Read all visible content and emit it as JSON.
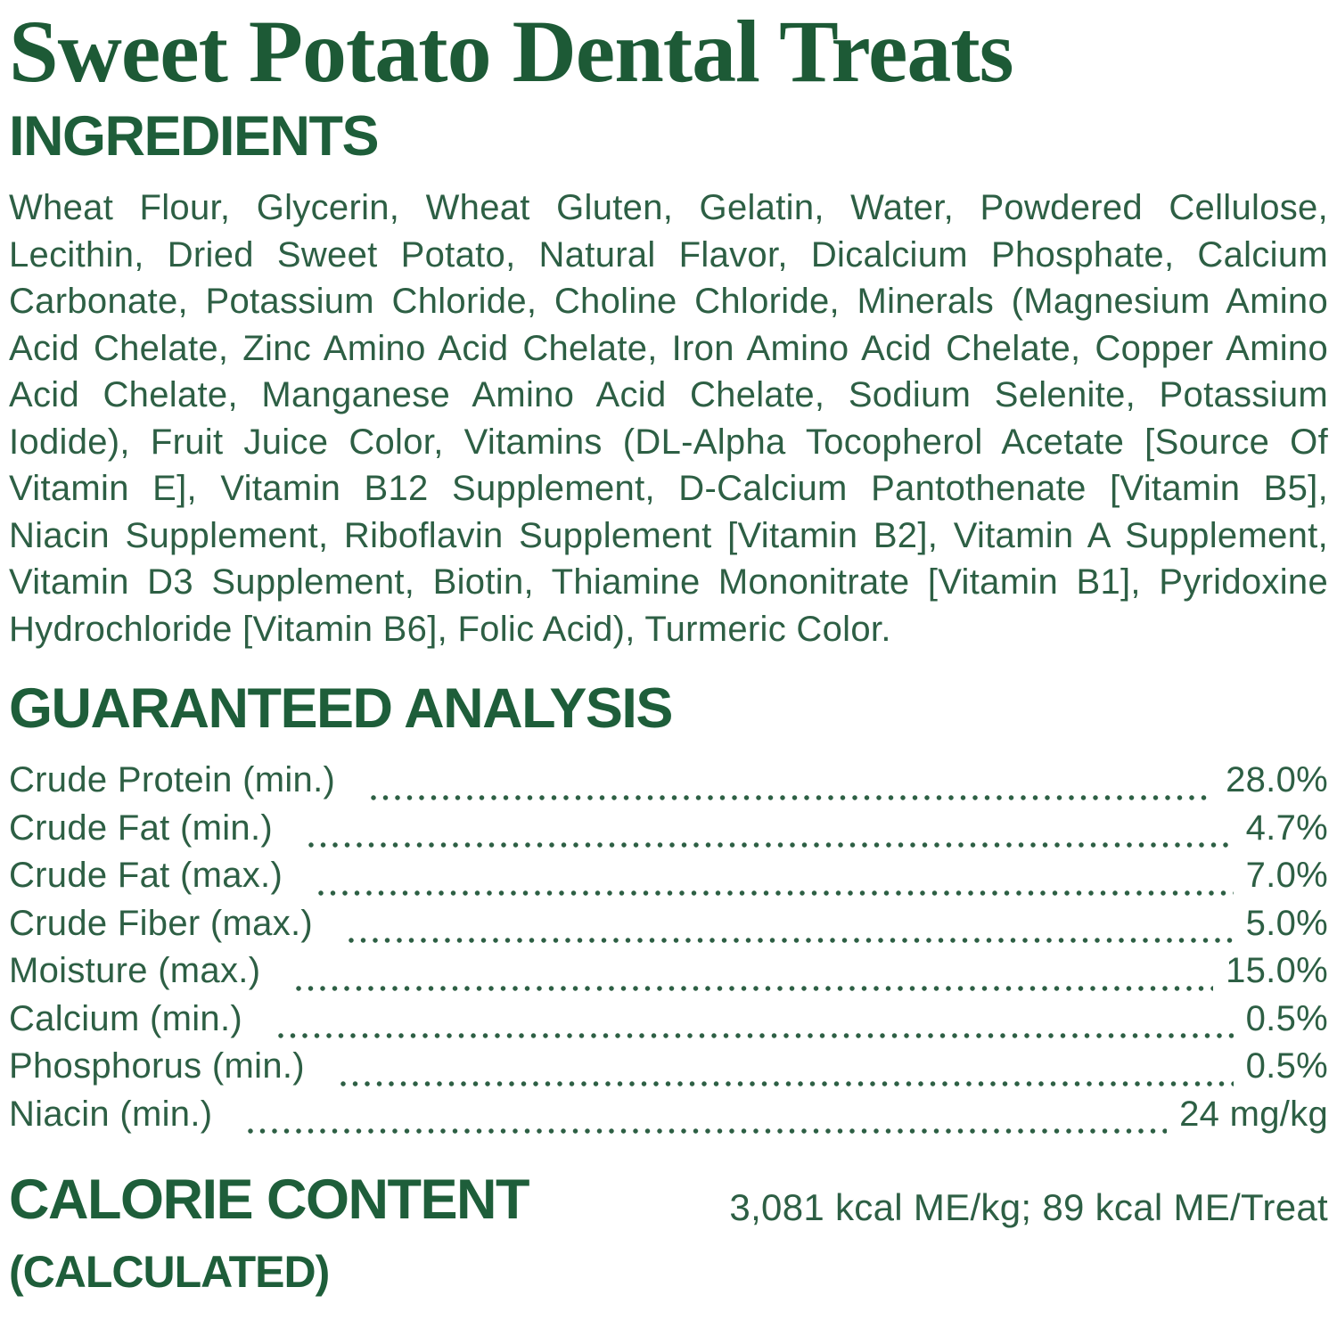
{
  "title": "Sweet Potato Dental Treats",
  "ingredients": {
    "heading": "INGREDIENTS",
    "text": "Wheat Flour, Glycerin, Wheat Gluten, Gelatin, Water, Powdered Cellulose, Lecithin, Dried Sweet Potato, Natural Flavor, Dicalcium Phosphate, Calcium Carbonate, Potassium Chloride, Choline Chloride, Minerals (Magnesium Amino Acid Chelate, Zinc Amino Acid Chelate, Iron Amino Acid Chelate, Copper Amino Acid Chelate, Manganese Amino Acid Chelate, Sodium Selenite, Potassium Iodide), Fruit Juice Color, Vitamins (DL-Alpha Tocopherol Acetate [Source Of Vitamin E], Vitamin B12 Supplement, D-Calcium Pantothenate [Vitamin B5], Niacin Supplement, Riboflavin Supplement [Vitamin B2], Vitamin A Supplement, Vitamin D3 Supplement, Biotin, Thiamine Mononitrate [Vitamin B1], Pyridoxine Hydrochloride [Vitamin B6], Folic Acid), Turmeric Color."
  },
  "guaranteed_analysis": {
    "heading": "GUARANTEED ANALYSIS",
    "rows": [
      {
        "label": "Crude Protein (min.)",
        "value": "28.0%"
      },
      {
        "label": "Crude Fat (min.)",
        "value": "4.7%"
      },
      {
        "label": "Crude Fat (max.)",
        "value": "7.0%"
      },
      {
        "label": "Crude Fiber (max.)",
        "value": "5.0%"
      },
      {
        "label": "Moisture (max.)",
        "value": "15.0%"
      },
      {
        "label": "Calcium (min.)",
        "value": "0.5%"
      },
      {
        "label": "Phosphorus (min.)",
        "value": "0.5%"
      },
      {
        "label": "Niacin (min.)",
        "value": "24 mg/kg"
      }
    ]
  },
  "calorie_content": {
    "heading": "CALORIE CONTENT",
    "subheading": "(CALCULATED)",
    "value": "3,081 kcal ME/kg; 89 kcal ME/Treat"
  },
  "colors": {
    "title_green": "#1d5a36",
    "heading_green": "#1e5e3a",
    "body_green": "#2d5f44"
  }
}
